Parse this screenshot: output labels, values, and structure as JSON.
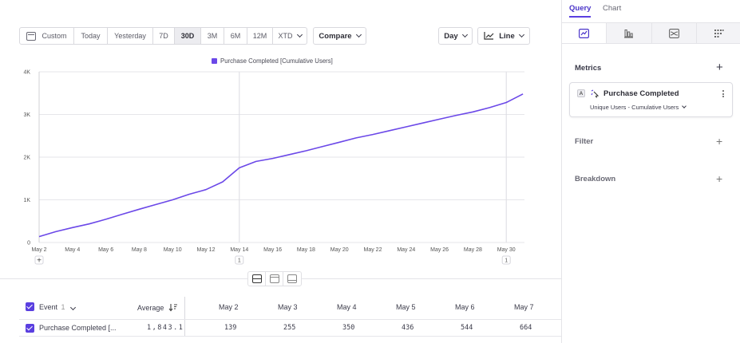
{
  "toolbar": {
    "date_buttons": [
      "Custom",
      "Today",
      "Yesterday",
      "7D",
      "30D",
      "3M",
      "6M",
      "12M",
      "XTD"
    ],
    "active_date": "30D",
    "compare": "Compare",
    "interval": "Day",
    "chart_type": "Line"
  },
  "legend": {
    "label": "Purchase Completed [Cumulative Users]",
    "color": "#6b48e8"
  },
  "chart_data": {
    "type": "line",
    "title": "",
    "xlabel": "",
    "ylabel": "",
    "ylim": [
      0,
      4000
    ],
    "y_ticks": [
      "0",
      "1K",
      "2K",
      "3K",
      "4K"
    ],
    "x_tick_labels": [
      "May 2",
      "May 4",
      "May 6",
      "May 8",
      "May 10",
      "May 12",
      "May 14",
      "May 16",
      "May 18",
      "May 20",
      "May 22",
      "May 24",
      "May 26",
      "May 28",
      "May 30"
    ],
    "x": [
      "May 2",
      "May 3",
      "May 4",
      "May 5",
      "May 6",
      "May 7",
      "May 8",
      "May 9",
      "May 10",
      "May 11",
      "May 12",
      "May 13",
      "May 14",
      "May 15",
      "May 16",
      "May 17",
      "May 18",
      "May 19",
      "May 20",
      "May 21",
      "May 22",
      "May 23",
      "May 24",
      "May 25",
      "May 26",
      "May 27",
      "May 28",
      "May 29",
      "May 30",
      "May 31"
    ],
    "series": [
      {
        "name": "Purchase Completed [Cumulative Users]",
        "values": [
          139,
          255,
          350,
          436,
          544,
          664,
          780,
          890,
          1000,
          1130,
          1240,
          1420,
          1750,
          1900,
          1970,
          2060,
          2150,
          2250,
          2350,
          2450,
          2530,
          2620,
          2710,
          2800,
          2890,
          2980,
          3060,
          3160,
          3280,
          3480
        ]
      }
    ],
    "grid": true,
    "annotation_markers": [
      {
        "x": "May 14",
        "label": "1"
      },
      {
        "x": "May 30",
        "label": "1"
      }
    ],
    "add_marker": "+"
  },
  "table": {
    "headers": {
      "event": "Event",
      "event_count": "1",
      "average": "Average",
      "dates": [
        "May 2",
        "May 3",
        "May 4",
        "May 5",
        "May 6",
        "May 7"
      ]
    },
    "rows": [
      {
        "event": "Purchase Completed [...",
        "average": "1,843.1",
        "values": [
          "139",
          "255",
          "350",
          "436",
          "544",
          "664"
        ]
      }
    ]
  },
  "panel": {
    "tabs": [
      "Query",
      "Chart"
    ],
    "active_tab": "Query",
    "metrics_title": "Metrics",
    "metric": {
      "badge": "A",
      "name": "Purchase Completed",
      "measure": "Unique Users - Cumulative Users"
    },
    "filter_title": "Filter",
    "breakdown_title": "Breakdown",
    "accent": "#5a3fe0"
  }
}
